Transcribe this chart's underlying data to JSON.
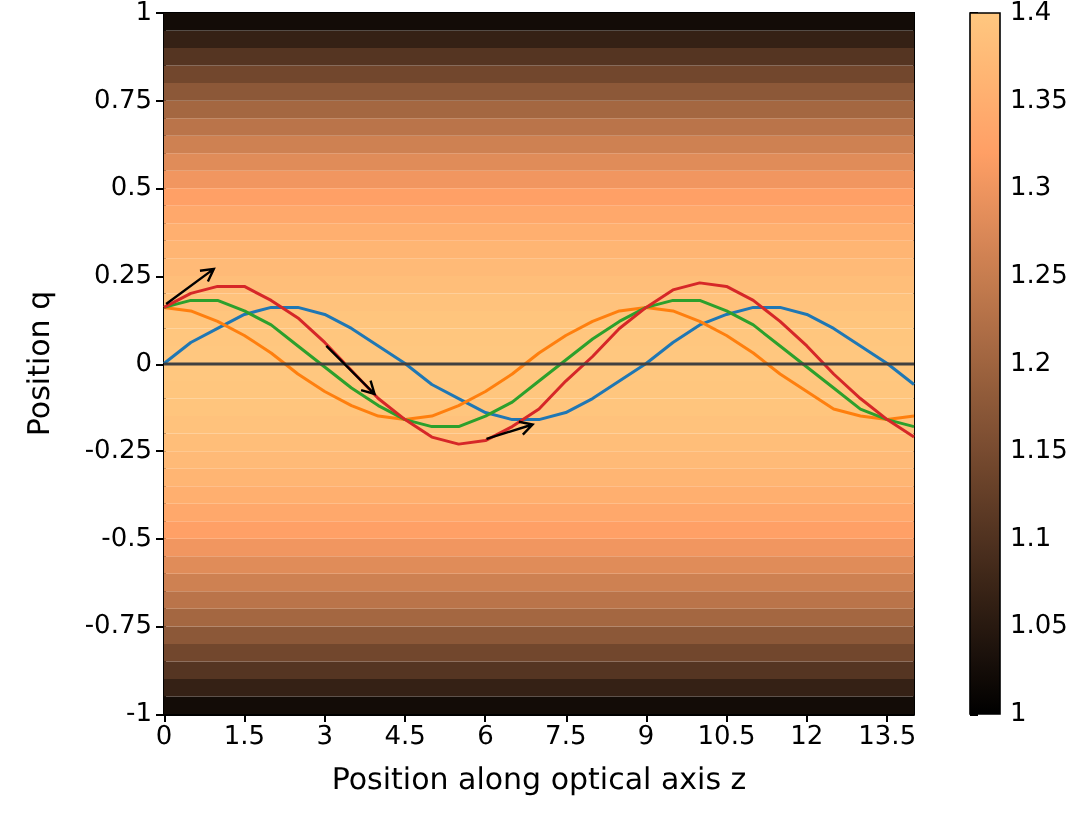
{
  "chart_data": {
    "type": "line",
    "xlabel": "Position along optical axis z",
    "ylabel": "Position q",
    "x": [
      0,
      0.5,
      1,
      1.5,
      2,
      2.5,
      3,
      3.5,
      4,
      4.5,
      5,
      5.5,
      6,
      6.5,
      7,
      7.5,
      8,
      8.5,
      9,
      9.5,
      10,
      10.5,
      11,
      11.5,
      12,
      12.5,
      13,
      13.5,
      14
    ],
    "series": [
      {
        "color": "#1f77b4",
        "values": [
          0,
          0.06,
          0.1,
          0.14,
          0.16,
          0.16,
          0.14,
          0.1,
          0.05,
          0,
          -0.06,
          -0.1,
          -0.14,
          -0.16,
          -0.16,
          -0.14,
          -0.1,
          -0.05,
          0,
          0.06,
          0.11,
          0.14,
          0.16,
          0.16,
          0.14,
          0.1,
          0.05,
          0,
          -0.06
        ]
      },
      {
        "color": "#ff7f0e",
        "values": [
          0.16,
          0.15,
          0.12,
          0.08,
          0.03,
          -0.03,
          -0.08,
          -0.12,
          -0.15,
          -0.16,
          -0.15,
          -0.12,
          -0.08,
          -0.03,
          0.03,
          0.08,
          0.12,
          0.15,
          0.16,
          0.15,
          0.12,
          0.08,
          0.03,
          -0.03,
          -0.08,
          -0.13,
          -0.15,
          -0.16,
          -0.15
        ]
      },
      {
        "color": "#2ca02c",
        "values": [
          0.16,
          0.18,
          0.18,
          0.15,
          0.11,
          0.05,
          -0.01,
          -0.07,
          -0.12,
          -0.16,
          -0.18,
          -0.18,
          -0.15,
          -0.11,
          -0.05,
          0.01,
          0.07,
          0.12,
          0.16,
          0.18,
          0.18,
          0.15,
          0.11,
          0.05,
          -0.01,
          -0.07,
          -0.13,
          -0.16,
          -0.18
        ]
      },
      {
        "color": "#d62728",
        "values": [
          0.16,
          0.2,
          0.22,
          0.22,
          0.18,
          0.13,
          0.06,
          -0.02,
          -0.1,
          -0.16,
          -0.21,
          -0.23,
          -0.22,
          -0.18,
          -0.13,
          -0.05,
          0.02,
          0.1,
          0.16,
          0.21,
          0.23,
          0.22,
          0.18,
          0.12,
          0.05,
          -0.03,
          -0.1,
          -0.16,
          -0.21
        ]
      }
    ],
    "ref_lines": [
      {
        "axis": "y",
        "value": 0,
        "color": "#404040"
      }
    ],
    "bands": [
      {
        "axis": "y",
        "from": -1,
        "to": -0.95,
        "color": "#130c07"
      },
      {
        "axis": "y",
        "from": -0.95,
        "to": -0.9,
        "color": "#352115"
      },
      {
        "axis": "y",
        "from": -0.9,
        "to": -0.85,
        "color": "#553522"
      },
      {
        "axis": "y",
        "from": -0.85,
        "to": -0.8,
        "color": "#72472d"
      },
      {
        "axis": "y",
        "from": -0.8,
        "to": -0.75,
        "color": "#8c5838"
      },
      {
        "axis": "y",
        "from": -0.75,
        "to": -0.7,
        "color": "#a46741"
      },
      {
        "axis": "y",
        "from": -0.7,
        "to": -0.65,
        "color": "#ba744a"
      },
      {
        "axis": "y",
        "from": -0.65,
        "to": -0.6,
        "color": "#ce8152"
      },
      {
        "axis": "y",
        "from": -0.6,
        "to": -0.55,
        "color": "#e08c59"
      },
      {
        "axis": "y",
        "from": -0.55,
        "to": -0.5,
        "color": "#f19660"
      },
      {
        "axis": "y",
        "from": -0.5,
        "to": -0.45,
        "color": "#ffa066"
      },
      {
        "axis": "y",
        "from": -0.45,
        "to": -0.4,
        "color": "#ffa86b"
      },
      {
        "axis": "y",
        "from": -0.4,
        "to": -0.35,
        "color": "#ffaf6f"
      },
      {
        "axis": "y",
        "from": -0.35,
        "to": -0.3,
        "color": "#ffb573"
      },
      {
        "axis": "y",
        "from": -0.3,
        "to": -0.25,
        "color": "#ffba77"
      },
      {
        "axis": "y",
        "from": -0.25,
        "to": -0.2,
        "color": "#ffbe79"
      },
      {
        "axis": "y",
        "from": -0.2,
        "to": -0.15,
        "color": "#ffc27c"
      },
      {
        "axis": "y",
        "from": -0.15,
        "to": -0.1,
        "color": "#ffc57d"
      },
      {
        "axis": "y",
        "from": -0.1,
        "to": -0.05,
        "color": "#ffc67e"
      },
      {
        "axis": "y",
        "from": -0.05,
        "to": 0,
        "color": "#ffc77f"
      },
      {
        "axis": "y",
        "from": 0,
        "to": 0.05,
        "color": "#ffc77f"
      },
      {
        "axis": "y",
        "from": 0.05,
        "to": 0.1,
        "color": "#ffc67e"
      },
      {
        "axis": "y",
        "from": 0.1,
        "to": 0.15,
        "color": "#ffc57d"
      },
      {
        "axis": "y",
        "from": 0.15,
        "to": 0.2,
        "color": "#ffc27c"
      },
      {
        "axis": "y",
        "from": 0.2,
        "to": 0.25,
        "color": "#ffbe79"
      },
      {
        "axis": "y",
        "from": 0.25,
        "to": 0.3,
        "color": "#ffba77"
      },
      {
        "axis": "y",
        "from": 0.3,
        "to": 0.35,
        "color": "#ffb573"
      },
      {
        "axis": "y",
        "from": 0.35,
        "to": 0.4,
        "color": "#ffaf6f"
      },
      {
        "axis": "y",
        "from": 0.4,
        "to": 0.45,
        "color": "#ffa86b"
      },
      {
        "axis": "y",
        "from": 0.45,
        "to": 0.5,
        "color": "#ffa066"
      },
      {
        "axis": "y",
        "from": 0.5,
        "to": 0.55,
        "color": "#f19660"
      },
      {
        "axis": "y",
        "from": 0.55,
        "to": 0.6,
        "color": "#e08c59"
      },
      {
        "axis": "y",
        "from": 0.6,
        "to": 0.65,
        "color": "#ce8152"
      },
      {
        "axis": "y",
        "from": 0.65,
        "to": 0.7,
        "color": "#ba744a"
      },
      {
        "axis": "y",
        "from": 0.7,
        "to": 0.75,
        "color": "#a46741"
      },
      {
        "axis": "y",
        "from": 0.75,
        "to": 0.8,
        "color": "#8c5838"
      },
      {
        "axis": "y",
        "from": 0.8,
        "to": 0.85,
        "color": "#72472d"
      },
      {
        "axis": "y",
        "from": 0.85,
        "to": 0.9,
        "color": "#553522"
      },
      {
        "axis": "y",
        "from": 0.9,
        "to": 0.95,
        "color": "#352115"
      },
      {
        "axis": "y",
        "from": 0.95,
        "to": 1,
        "color": "#130c07"
      }
    ],
    "xlim": [
      0,
      14
    ],
    "xticks": [
      0,
      1.5,
      3,
      4.5,
      6,
      7.5,
      9,
      10.5,
      12,
      13.5
    ],
    "ylim": [
      -1,
      1
    ],
    "yticks": [
      -1,
      -0.75,
      -0.5,
      -0.25,
      0,
      0.25,
      0.5,
      0.75,
      1
    ],
    "clim": [
      1,
      1.4
    ],
    "cticks": [
      1,
      1.05,
      1.1,
      1.15,
      1.2,
      1.25,
      1.3,
      1.35,
      1.4
    ],
    "grid": false,
    "marker": "none",
    "line_style": "solid"
  }
}
